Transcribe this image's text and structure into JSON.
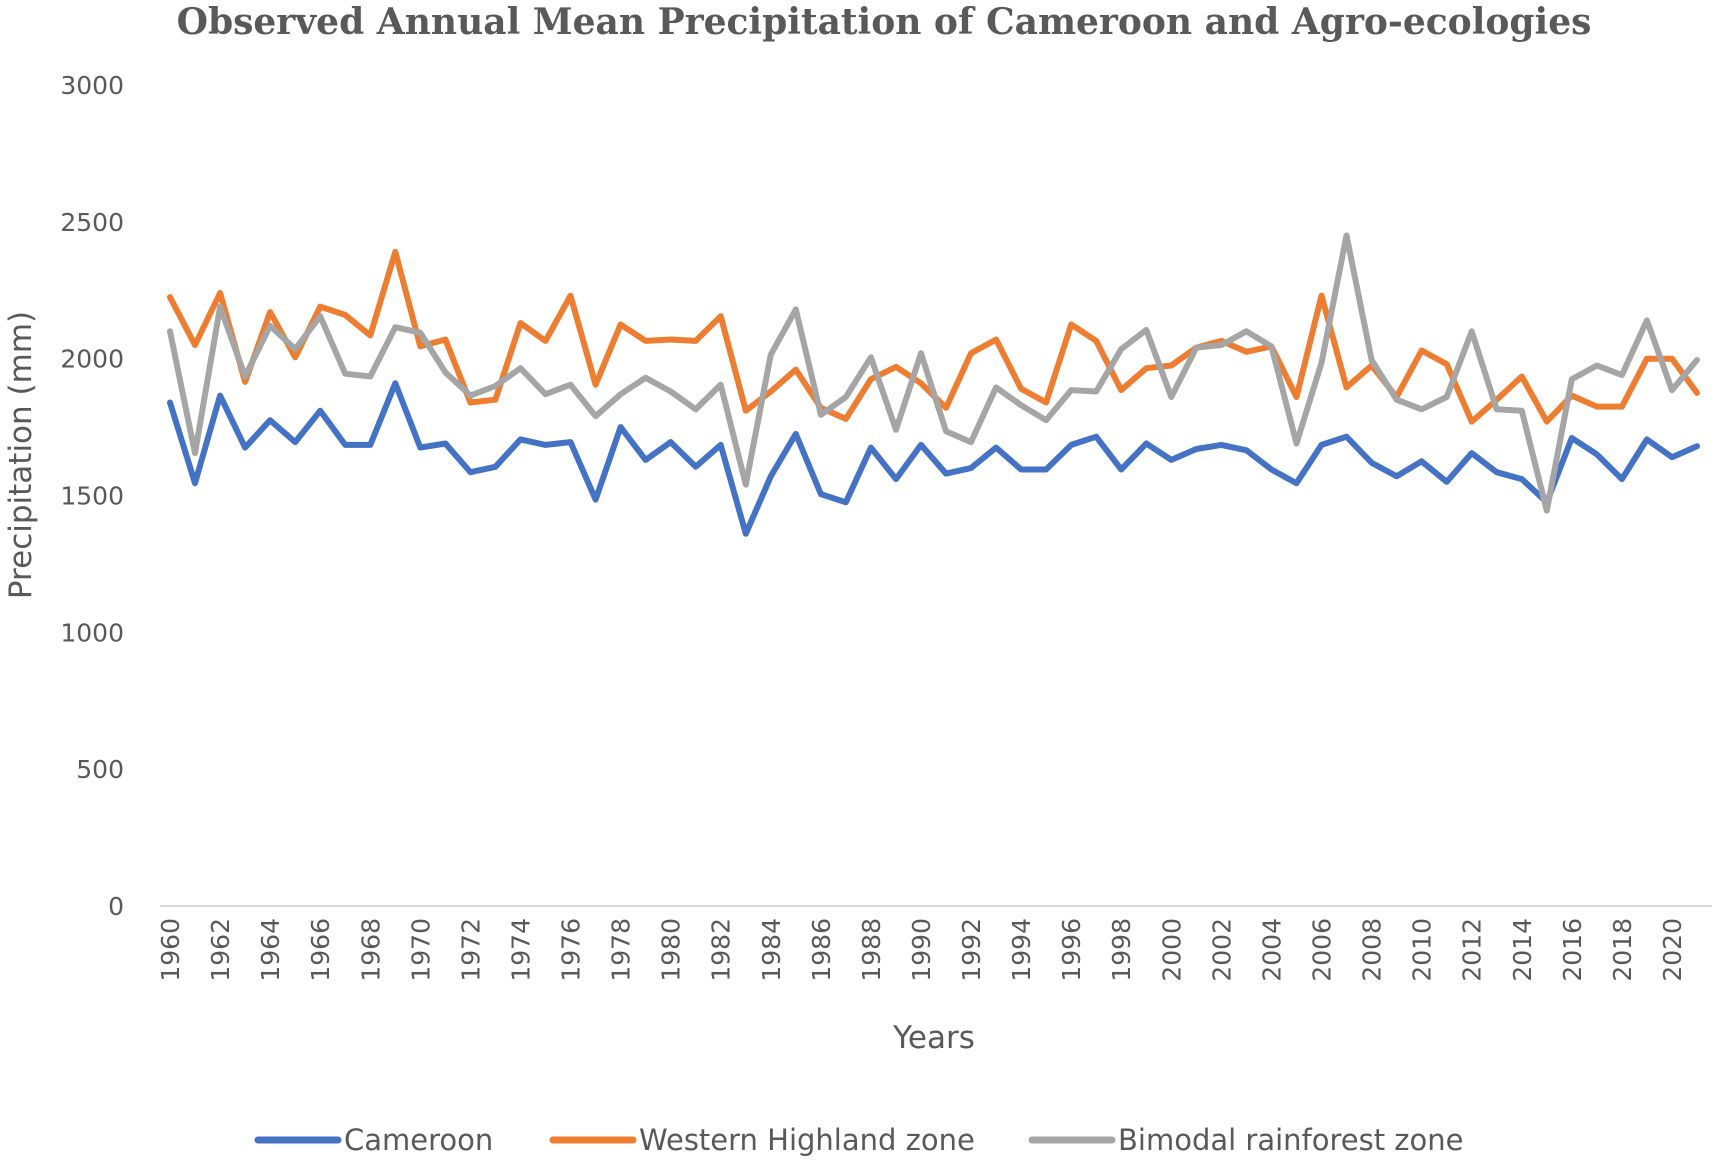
{
  "chart_data": {
    "type": "line",
    "title": "Observed Annual Mean Precipitation of Cameroon and Agro-ecologies",
    "xlabel": "Years",
    "ylabel": "Precipitation (mm)",
    "ylim": [
      0,
      3000
    ],
    "yticks": [
      "0",
      "500",
      "1000",
      "1500",
      "2000",
      "2500",
      "3000"
    ],
    "x": [
      1960,
      1961,
      1962,
      1963,
      1964,
      1965,
      1966,
      1967,
      1968,
      1969,
      1970,
      1971,
      1972,
      1973,
      1974,
      1975,
      1976,
      1977,
      1978,
      1979,
      1980,
      1981,
      1982,
      1983,
      1984,
      1985,
      1986,
      1987,
      1988,
      1989,
      1990,
      1991,
      1992,
      1993,
      1994,
      1995,
      1996,
      1997,
      1998,
      1999,
      2000,
      2001,
      2002,
      2003,
      2004,
      2005,
      2006,
      2007,
      2008,
      2009,
      2010,
      2011,
      2012,
      2013,
      2014,
      2015,
      2016,
      2017,
      2018,
      2019,
      2020,
      2021
    ],
    "xtick_labels": [
      "1960",
      "1962",
      "1964",
      "1966",
      "1968",
      "1970",
      "1972",
      "1974",
      "1976",
      "1978",
      "1980",
      "1982",
      "1984",
      "1986",
      "1988",
      "1990",
      "1992",
      "1994",
      "1996",
      "1998",
      "2000",
      "2002",
      "2004",
      "2006",
      "2008",
      "2010",
      "2012",
      "2014",
      "2016",
      "2018",
      "2020"
    ],
    "legend_position": "bottom",
    "grid": false,
    "series": [
      {
        "name": "Cameroon",
        "color": "#4472C4",
        "values": [
          1840,
          1545,
          1865,
          1675,
          1775,
          1695,
          1810,
          1685,
          1685,
          1910,
          1675,
          1690,
          1585,
          1605,
          1705,
          1685,
          1695,
          1485,
          1750,
          1630,
          1695,
          1605,
          1685,
          1360,
          1570,
          1725,
          1505,
          1475,
          1675,
          1560,
          1685,
          1580,
          1600,
          1675,
          1595,
          1595,
          1685,
          1715,
          1595,
          1690,
          1630,
          1670,
          1685,
          1665,
          1595,
          1545,
          1685,
          1715,
          1620,
          1570,
          1625,
          1550,
          1655,
          1585,
          1560,
          1475,
          1710,
          1650,
          1560,
          1705,
          1640,
          1680
        ]
      },
      {
        "name": "Western Highland zone",
        "color": "#ED7D31",
        "values": [
          2225,
          2050,
          2240,
          1915,
          2170,
          2005,
          2190,
          2160,
          2085,
          2390,
          2045,
          2070,
          1840,
          1850,
          2130,
          2065,
          2230,
          1905,
          2125,
          2065,
          2070,
          2065,
          2155,
          1810,
          1880,
          1960,
          1820,
          1780,
          1925,
          1970,
          1910,
          1820,
          2020,
          2070,
          1890,
          1840,
          2125,
          2065,
          1885,
          1965,
          1975,
          2040,
          2065,
          2025,
          2045,
          1860,
          2230,
          1895,
          1975,
          1860,
          2030,
          1980,
          1770,
          1850,
          1935,
          1770,
          1865,
          1825,
          1825,
          2000,
          2000,
          1875
        ]
      },
      {
        "name": "Bimodal rainforest zone",
        "color": "#A5A5A5",
        "values": [
          2100,
          1655,
          2190,
          1935,
          2120,
          2035,
          2155,
          1945,
          1935,
          2115,
          2095,
          1950,
          1865,
          1900,
          1965,
          1870,
          1905,
          1790,
          1870,
          1930,
          1880,
          1815,
          1905,
          1540,
          2015,
          2180,
          1795,
          1860,
          2005,
          1740,
          2020,
          1735,
          1695,
          1895,
          1830,
          1775,
          1885,
          1880,
          2035,
          2105,
          1860,
          2040,
          2050,
          2100,
          2045,
          1690,
          1985,
          2450,
          1995,
          1850,
          1815,
          1860,
          2100,
          1815,
          1810,
          1445,
          1925,
          1975,
          1940,
          2140,
          1885,
          1995
        ]
      }
    ]
  }
}
